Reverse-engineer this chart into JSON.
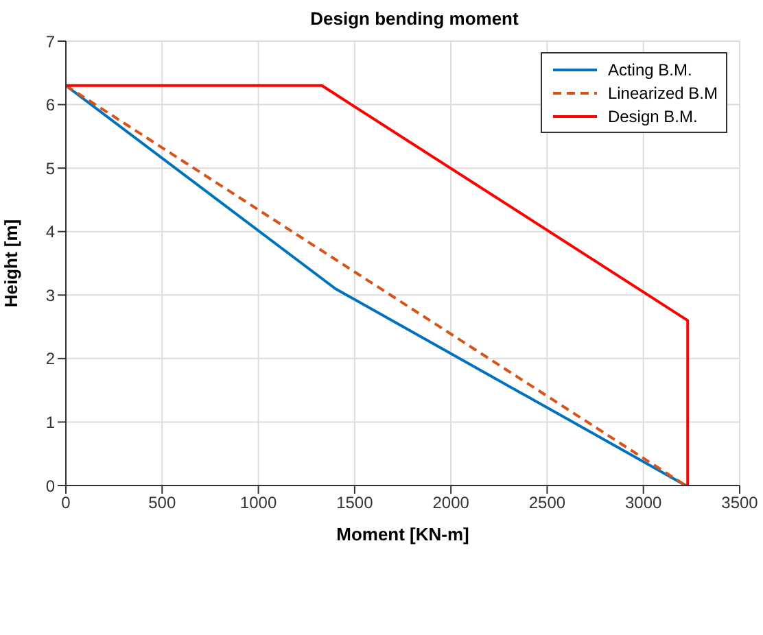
{
  "chart_data": {
    "type": "line",
    "title": "Design bending moment",
    "xlabel": "Moment [KN-m]",
    "ylabel": "Height [m]",
    "xlim": [
      0,
      3500
    ],
    "xticks": [
      0,
      500,
      1000,
      1500,
      2000,
      2500,
      3000,
      3500
    ],
    "ylim": [
      0,
      7
    ],
    "yticks": [
      0,
      1,
      2,
      3,
      4,
      5,
      6,
      7
    ],
    "grid": true,
    "legend": "top right",
    "series": [
      {
        "name": "Acting B.M.",
        "color": "#0072bd",
        "x": [
          0,
          1400,
          3220
        ],
        "values": [
          6.3,
          3.1,
          0
        ]
      },
      {
        "name": "Linearized B.M",
        "color": "#d95319",
        "line_style": "dashed",
        "x": [
          0,
          3220
        ],
        "values": [
          6.3,
          0
        ]
      },
      {
        "name": "Design B.M.",
        "color": "#ff0000",
        "x": [
          0,
          1330,
          3230,
          3230
        ],
        "values": [
          6.3,
          6.3,
          2.6,
          0
        ]
      }
    ]
  }
}
